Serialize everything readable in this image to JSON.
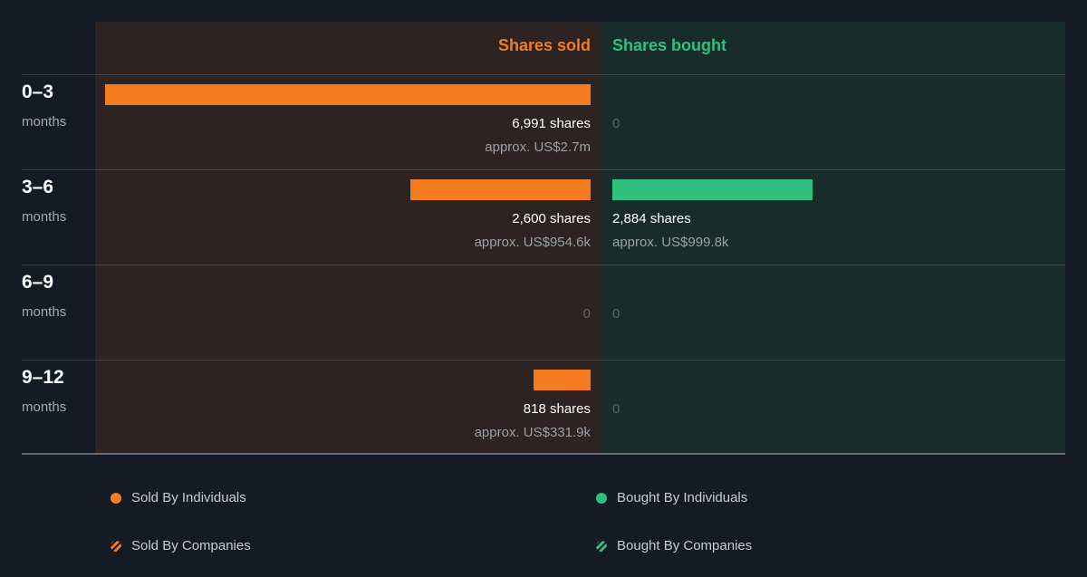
{
  "chart_data": {
    "type": "bar",
    "title": "",
    "column_headers": {
      "sold": "Shares sold",
      "bought": "Shares bought"
    },
    "colors": {
      "sold": "#f47c20",
      "bought": "#2ec27e"
    },
    "rows": [
      {
        "period": "0–3",
        "unit": "months",
        "sold": {
          "shares": 6991,
          "shares_label": "6,991 shares",
          "approx": "approx. US$2.7m"
        },
        "bought": {
          "shares": 0,
          "shares_label": "0",
          "approx": ""
        }
      },
      {
        "period": "3–6",
        "unit": "months",
        "sold": {
          "shares": 2600,
          "shares_label": "2,600 shares",
          "approx": "approx. US$954.6k"
        },
        "bought": {
          "shares": 2884,
          "shares_label": "2,884 shares",
          "approx": "approx. US$999.8k"
        }
      },
      {
        "period": "6–9",
        "unit": "months",
        "sold": {
          "shares": 0,
          "shares_label": "0",
          "approx": ""
        },
        "bought": {
          "shares": 0,
          "shares_label": "0",
          "approx": ""
        }
      },
      {
        "period": "9–12",
        "unit": "months",
        "sold": {
          "shares": 818,
          "shares_label": "818 shares",
          "approx": "approx. US$331.9k"
        },
        "bought": {
          "shares": 0,
          "shares_label": "0",
          "approx": ""
        }
      }
    ],
    "legend": [
      {
        "label": "Sold By Individuals",
        "color": "#f47c20",
        "style": "solid"
      },
      {
        "label": "Bought By Individuals",
        "color": "#2ec27e",
        "style": "solid"
      },
      {
        "label": "Sold By Companies",
        "color": "#f47c20",
        "style": "striped"
      },
      {
        "label": "Bought By Companies",
        "color": "#2ec27e",
        "style": "striped"
      }
    ]
  }
}
